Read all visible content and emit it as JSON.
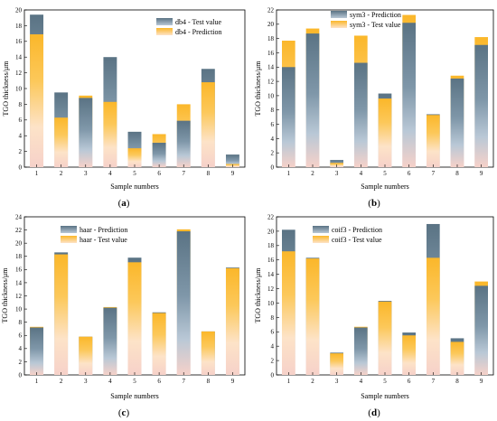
{
  "colors": {
    "slate": "#5a7384",
    "slate_light": "#b9c8d6",
    "orange": "#fbb72a",
    "orange_light": "#fde3c8",
    "pink_base": "#f6d1c9"
  },
  "chart_data": [
    {
      "panel": "(a)",
      "panel_letter": "a",
      "type": "bar",
      "xlabel": "Sample numbers",
      "ylabel": "TGO thickness/μm",
      "ylim": [
        0,
        20
      ],
      "yticks": [
        0,
        2,
        4,
        6,
        8,
        10,
        12,
        14,
        16,
        18,
        20
      ],
      "categories": [
        "1",
        "2",
        "3",
        "4",
        "5",
        "6",
        "7",
        "8",
        "9"
      ],
      "legend_position": "top-right",
      "series": [
        {
          "name": "db4 - Test value",
          "style": "slate",
          "values": [
            19.4,
            9.5,
            8.8,
            14.0,
            4.5,
            3.1,
            5.9,
            12.5,
            1.6
          ]
        },
        {
          "name": "db4 - Prediction",
          "style": "orange",
          "values": [
            16.9,
            6.3,
            9.1,
            8.3,
            2.4,
            4.2,
            8.0,
            10.8,
            0.4
          ]
        }
      ]
    },
    {
      "panel": "(b)",
      "panel_letter": "b",
      "type": "bar",
      "xlabel": "Sample numbers",
      "ylabel": "TGO thickness/μm",
      "ylim": [
        0,
        22
      ],
      "yticks": [
        0,
        2,
        4,
        6,
        8,
        10,
        12,
        14,
        16,
        18,
        20,
        22
      ],
      "categories": [
        "1",
        "2",
        "3",
        "4",
        "5",
        "6",
        "7",
        "8",
        "9"
      ],
      "legend_position": "top-center",
      "series": [
        {
          "name": "sym3 - Prediction",
          "style": "slate",
          "values": [
            14.0,
            18.7,
            1.0,
            14.6,
            10.3,
            20.2,
            7.4,
            12.4,
            17.1
          ]
        },
        {
          "name": "sym3 - Test value",
          "style": "orange",
          "values": [
            17.7,
            19.4,
            0.6,
            18.4,
            9.6,
            21.3,
            7.3,
            12.8,
            18.2
          ]
        }
      ]
    },
    {
      "panel": "(c)",
      "panel_letter": "c",
      "type": "bar",
      "xlabel": "Sample numbers",
      "ylabel": "TGO thickness/μm",
      "ylim": [
        0,
        24
      ],
      "yticks": [
        0,
        2,
        4,
        6,
        8,
        10,
        12,
        14,
        16,
        18,
        20,
        22,
        24
      ],
      "categories": [
        "1",
        "2",
        "3",
        "4",
        "5",
        "6",
        "7",
        "8",
        "9"
      ],
      "legend_position": "top-left",
      "series": [
        {
          "name": "haar - Prediction",
          "style": "slate",
          "values": [
            7.2,
            18.6,
            5.8,
            10.2,
            17.8,
            9.5,
            21.8,
            6.6,
            16.3
          ]
        },
        {
          "name": "haar - Test value",
          "style": "orange",
          "values": [
            7.3,
            18.3,
            5.8,
            10.3,
            17.1,
            9.4,
            22.1,
            6.6,
            16.2
          ]
        }
      ]
    },
    {
      "panel": "(d)",
      "panel_letter": "d",
      "type": "bar",
      "xlabel": "Sample numbers",
      "ylabel": "TGO thickness/μm",
      "ylim": [
        0,
        22
      ],
      "yticks": [
        0,
        2,
        4,
        6,
        8,
        10,
        12,
        14,
        16,
        18,
        20,
        22
      ],
      "categories": [
        "1",
        "2",
        "3",
        "4",
        "5",
        "6",
        "7",
        "8",
        "9"
      ],
      "legend_position": "top-left",
      "series": [
        {
          "name": "coif3 - Prediction",
          "style": "slate",
          "values": [
            20.2,
            16.3,
            3.1,
            6.6,
            10.3,
            5.9,
            21.0,
            5.1,
            12.4
          ]
        },
        {
          "name": "coif3 - Test value",
          "style": "orange",
          "values": [
            17.2,
            16.2,
            3.0,
            6.7,
            10.2,
            5.5,
            16.3,
            4.6,
            13.0
          ]
        }
      ]
    }
  ]
}
